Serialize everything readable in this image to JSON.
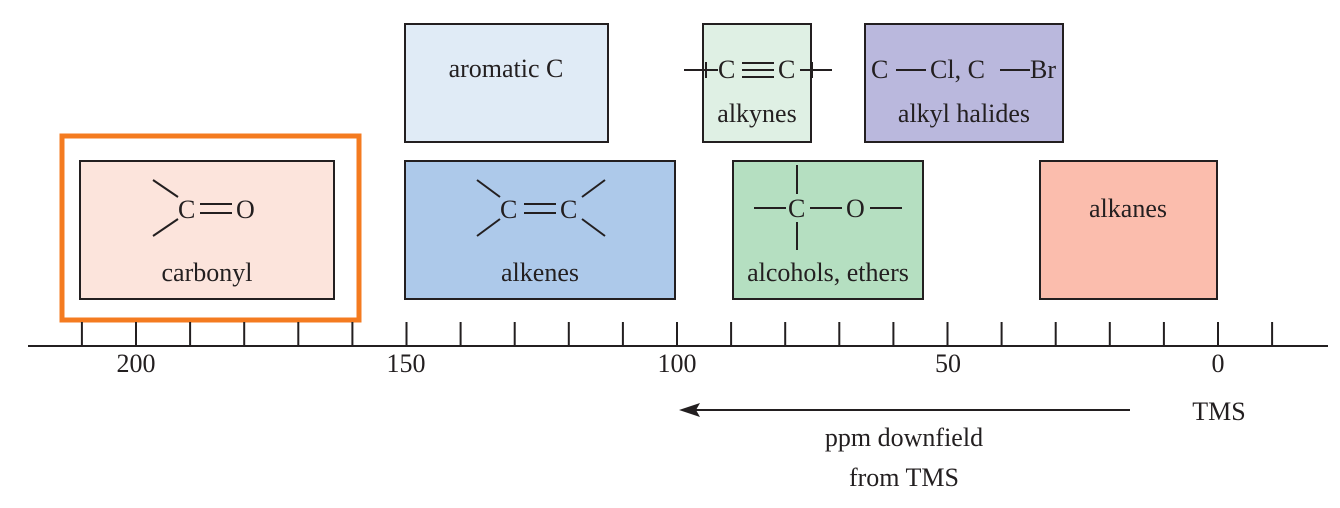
{
  "axis": {
    "tick_labels": [
      "200",
      "150",
      "100",
      "50",
      "0"
    ],
    "label_values": [
      200,
      150,
      100,
      50,
      0
    ],
    "range": [
      220,
      -20
    ],
    "minor_tick_step": 10,
    "tms_label": "TMS",
    "direction_label_line1": "ppm downfield",
    "direction_label_line2": "from TMS"
  },
  "regions": [
    {
      "key": "carbonyl",
      "label": "carbonyl",
      "formula": "C=O",
      "atom_c": "C",
      "atom_o": "O",
      "ppm_from": 210,
      "ppm_to": 162,
      "color": "#fce4dc",
      "highlighted": true
    },
    {
      "key": "aromatic",
      "label": "aromatic C",
      "ppm_from": 150,
      "ppm_to": 112,
      "color": "#e0ebf6"
    },
    {
      "key": "alkenes",
      "label": "alkenes",
      "formula": "C=C",
      "atom_1": "C",
      "atom_2": "C",
      "ppm_from": 150,
      "ppm_to": 100,
      "color": "#adc9ea"
    },
    {
      "key": "alkynes",
      "label": "alkynes",
      "formula": "C≡C",
      "atom_1": "C",
      "atom_2": "C",
      "ppm_from": 95,
      "ppm_to": 76,
      "color": "#dff0e4"
    },
    {
      "key": "alcohols",
      "label": "alcohols, ethers",
      "formula": "C–O",
      "atom_c": "C",
      "atom_o": "O",
      "ppm_from": 90,
      "ppm_to": 55,
      "color": "#b5dfc1"
    },
    {
      "key": "halides",
      "label": "alkyl halides",
      "formula_text": [
        "C",
        "Cl, C",
        "Br"
      ],
      "ppm_from": 65,
      "ppm_to": 28,
      "color": "#bab8dd"
    },
    {
      "key": "alkanes",
      "label": "alkanes",
      "ppm_from": 33,
      "ppm_to": 0,
      "color": "#fbbdad"
    }
  ],
  "colors": {
    "highlight": "#f47b20",
    "ink": "#231f20"
  }
}
